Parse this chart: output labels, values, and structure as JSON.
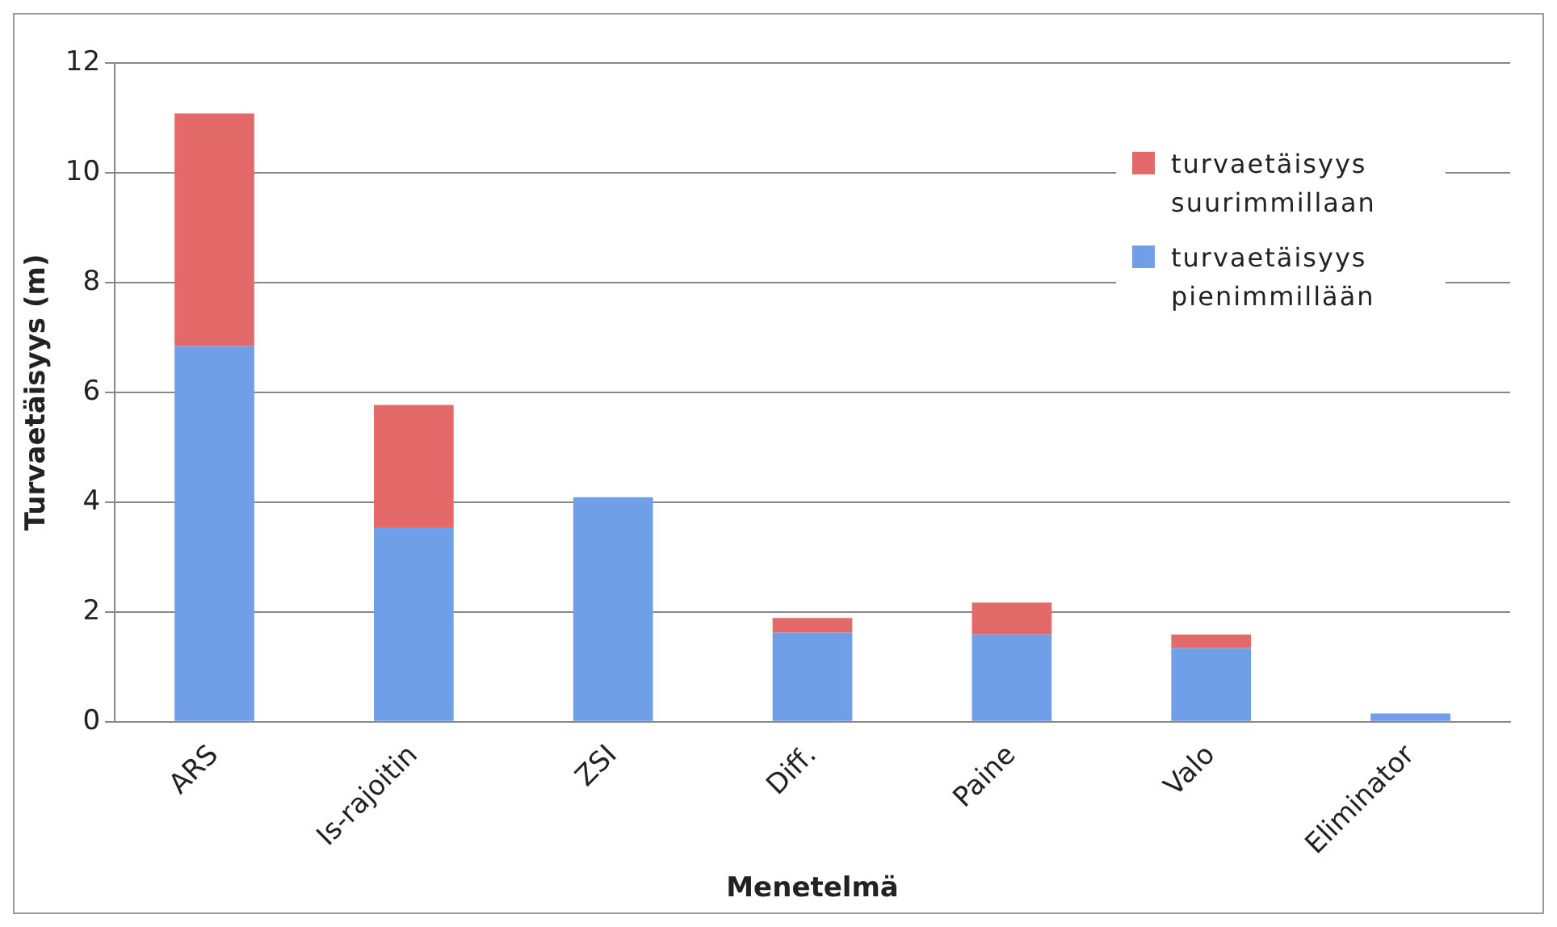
{
  "chart_data": {
    "type": "bar",
    "stacked": true,
    "xlabel": "Menetelmä",
    "ylabel": "Turvaetäisyys (m)",
    "categories": [
      "ARS",
      "Is-rajoitin",
      "ZSI",
      "Diff.",
      "Paine",
      "Valo",
      "Eliminator"
    ],
    "series": [
      {
        "name": "turvaetäisyys pienimmillään",
        "color": "#6f9fe6",
        "values": [
          6.84,
          3.54,
          4.09,
          1.62,
          1.59,
          1.34,
          0.15
        ]
      },
      {
        "name": "turvaetäisyys suurimmillaan",
        "color": "#e46a6a",
        "values": [
          4.24,
          2.23,
          null,
          0.27,
          0.58,
          0.25,
          null
        ]
      }
    ],
    "ylim": [
      0,
      12
    ],
    "yticks": [
      0,
      2,
      4,
      6,
      8,
      10,
      12
    ],
    "grid": "y",
    "legend": "top right"
  }
}
